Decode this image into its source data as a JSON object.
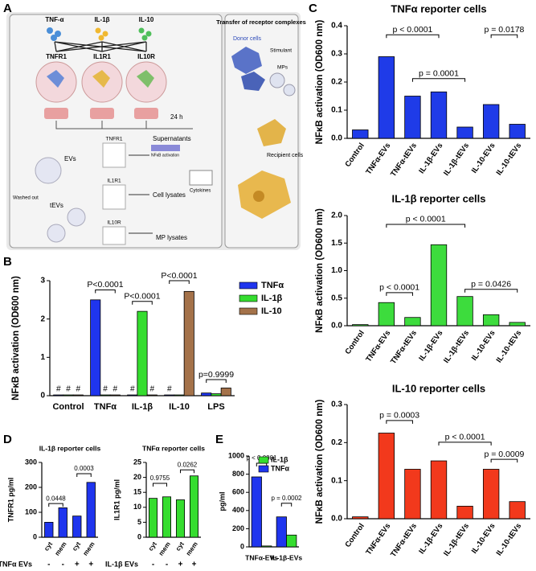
{
  "panel_labels": [
    "A",
    "B",
    "C",
    "D",
    "E"
  ],
  "diagram": {
    "ligands": [
      "TNF-α",
      "IL-1β",
      "IL-10"
    ],
    "receptors": [
      "TNFR1",
      "IL1R1",
      "IL10R"
    ],
    "incubation": "24 h",
    "evs": "EVs",
    "tevs": "tEVs",
    "washed_out": "Washed out",
    "lysate_receptors": [
      "TNFR1",
      "IL1R1",
      "IL10R"
    ],
    "supernatants": "Supernatants",
    "nfkb": "NFκB activation",
    "cytokines": "Cytokines",
    "cell_lysates": "Cell lysates",
    "mp_lysates": "MP lysates",
    "transfer_title": "Transfer of receptor complexes",
    "donor": "Donor cells",
    "stimulant": "Stimulant",
    "mps": "MPs",
    "recipient": "Recipient cells"
  },
  "chart_data": [
    {
      "type": "bar",
      "ylabel": "NFκB activation (OD600 nm)",
      "categories": [
        "Control",
        "TNFα",
        "IL-1β",
        "IL-10",
        "LPS"
      ],
      "series": [
        {
          "name": "TNFα",
          "color": "#1f35ee",
          "values": [
            0.02,
            2.5,
            0.02,
            0.02,
            0.07
          ]
        },
        {
          "name": "IL-1β",
          "color": "#35dd2f",
          "values": [
            0.02,
            0.02,
            2.2,
            0.02,
            0.05
          ]
        },
        {
          "name": "IL-10",
          "color": "#a4724a",
          "values": [
            0.02,
            0.02,
            0.02,
            2.72,
            0.2
          ]
        }
      ],
      "ylim": [
        0,
        3
      ],
      "yticks": [
        0,
        1,
        2,
        3
      ],
      "legend": "right",
      "annotations": [
        {
          "text": "P<0.0001"
        },
        {
          "text": "P<0.0001"
        },
        {
          "text": "P<0.0001"
        },
        {
          "text": "p=0.9999"
        }
      ],
      "hash_marks": [
        "#",
        "#",
        "#",
        "#",
        "#",
        "#",
        "#",
        "#"
      ]
    },
    {
      "type": "bar",
      "title": "TNFα reporter cells",
      "ylabel": "NFκB activation (OD600 nm)",
      "categories": [
        "Control",
        "TNFα-EVs",
        "TNFα-tEVs",
        "IL-1β-EVs",
        "IL-1β-tEVs",
        "IL-10-EVs",
        "IL-10-tEVs"
      ],
      "values": [
        0.03,
        0.29,
        0.15,
        0.165,
        0.04,
        0.12,
        0.05
      ],
      "color": "#1f3be8",
      "ylim": [
        0,
        0.4
      ],
      "yticks": [
        {
          "value": 0,
          "label": "0.0"
        },
        0.1,
        0.2,
        0.3,
        0.4
      ],
      "annotations": [
        {
          "text": "p < 0.0001"
        },
        {
          "text": "p = 0.0001"
        },
        {
          "text": "p = 0.0178"
        }
      ]
    },
    {
      "type": "bar",
      "title": "IL-1β reporter cells",
      "ylabel": "NFκB activation (OD600 nm)",
      "categories": [
        "Control",
        "TNFα-EVs",
        "TNFα-tEVs",
        "IL-1β-EVs",
        "IL-1β-tEVs",
        "IL-10-EVs",
        "IL-10-tEVs"
      ],
      "values": [
        0.02,
        0.42,
        0.15,
        1.47,
        0.53,
        0.2,
        0.06
      ],
      "color": "#3ddc3d",
      "ylim": [
        0,
        2
      ],
      "yticks": [
        {
          "value": 0,
          "label": "0.0"
        },
        0.5,
        {
          "value": 1,
          "label": "1.0"
        },
        1.5,
        {
          "value": 2,
          "label": "2.0"
        }
      ],
      "annotations": [
        {
          "text": "p < 0.0001"
        },
        {
          "text": "p < 0.0001"
        },
        {
          "text": "p = 0.0426"
        }
      ]
    },
    {
      "type": "bar",
      "title": "IL-10 reporter cells",
      "ylabel": "NFκB activation (OD600 nm)",
      "categories": [
        "Control",
        "TNFα-EVs",
        "TNFα-tEVs",
        "IL-1β-EVs",
        "IL-1β-tEVs",
        "IL-10-EVs",
        "IL-10-tEVs"
      ],
      "values": [
        0.005,
        0.225,
        0.13,
        0.152,
        0.033,
        0.13,
        0.045
      ],
      "color": "#f2391c",
      "ylim": [
        0,
        0.3
      ],
      "yticks": [
        {
          "value": 0,
          "label": "0.0"
        },
        0.1,
        0.2,
        0.3
      ],
      "annotations": [
        {
          "text": "p = 0.0003"
        },
        {
          "text": "p < 0.0001"
        },
        {
          "text": "p = 0.0009"
        }
      ]
    },
    {
      "type": "bar",
      "title": "IL-1β reporter cells",
      "ylabel": "TNFR1 pg/ml",
      "categories": [
        "cyt",
        "mem",
        "cyt",
        "mem"
      ],
      "values": [
        60,
        118,
        85,
        220
      ],
      "color": "#1f35ee",
      "ylim": [
        0,
        300
      ],
      "yticks": [
        0,
        100,
        200,
        300
      ],
      "annotations": [
        {
          "text": "0.0448"
        },
        {
          "text": "0.0003"
        }
      ],
      "treatment": {
        "label": "TNFα EVs",
        "signs": [
          "-",
          "-",
          "+",
          "+"
        ]
      }
    },
    {
      "type": "bar",
      "title": "TNFα reporter cells",
      "ylabel": "IL1R1 pg/ml",
      "categories": [
        "cyt",
        "mem",
        "cyt",
        "mem"
      ],
      "values": [
        13,
        13.5,
        12.5,
        20.5
      ],
      "color": "#35dd2f",
      "ylim": [
        0,
        25
      ],
      "yticks": [
        0,
        5,
        10,
        15,
        20,
        25
      ],
      "annotations": [
        {
          "text": "0.9755"
        },
        {
          "text": "0.0262"
        }
      ],
      "treatment": {
        "label": "IL-1β EVs",
        "signs": [
          "-",
          "-",
          "+",
          "+"
        ]
      }
    },
    {
      "type": "bar",
      "ylabel": "pg/ml",
      "categories": [
        "TNFα-EVs",
        "IL-1β-EVs"
      ],
      "series": [
        {
          "name": "TNFα",
          "color": "#1f35ee",
          "values": [
            770,
            330
          ]
        },
        {
          "name": "IL-1β",
          "color": "#35dd2f",
          "values": [
            10,
            130
          ]
        }
      ],
      "ylim": [
        0,
        1000
      ],
      "yticks": [
        0,
        200,
        400,
        600,
        800,
        1000
      ],
      "legend": "upper right",
      "annotations": [
        {
          "text": "p < 0.0001"
        },
        {
          "text": "p = 0.0002"
        }
      ]
    }
  ]
}
